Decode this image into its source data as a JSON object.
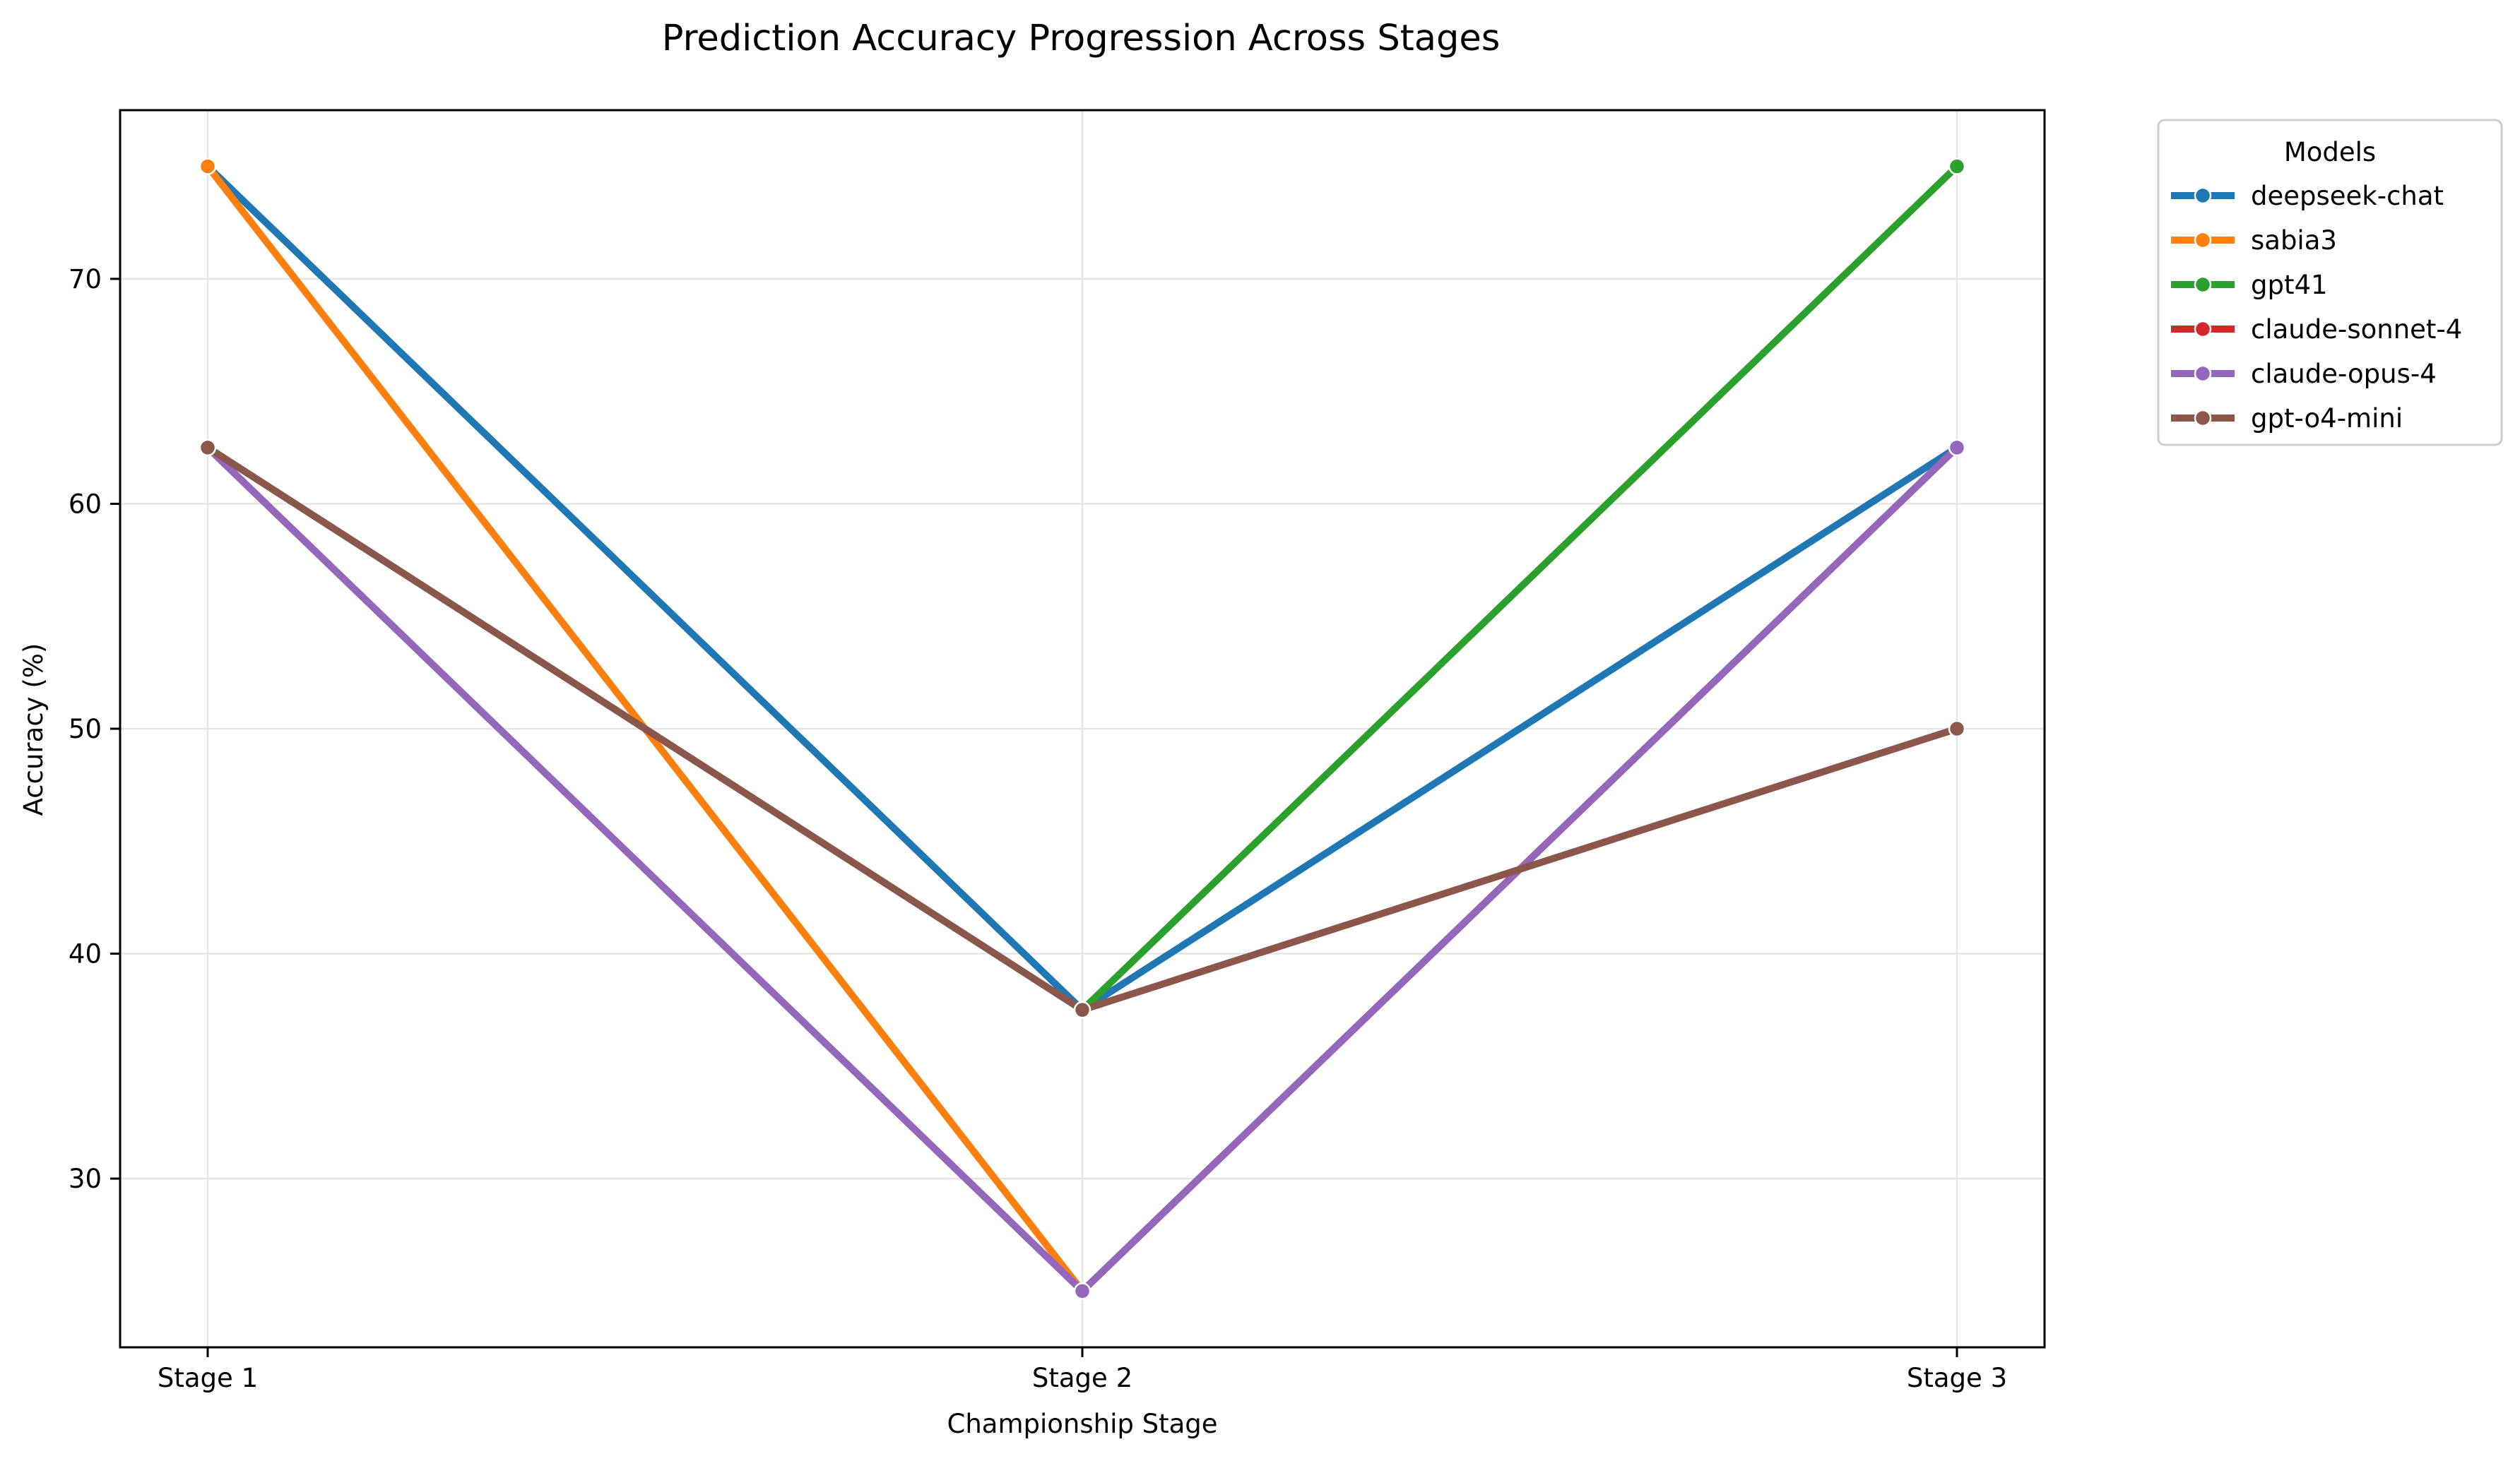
{
  "chart_data": {
    "type": "line",
    "title": "Prediction Accuracy Progression Across Stages",
    "xlabel": "Championship Stage",
    "ylabel": "Accuracy (%)",
    "categories": [
      "Stage 1",
      "Stage 2",
      "Stage 3"
    ],
    "ylim": [
      22.5,
      77.5
    ],
    "yticks": [
      30,
      40,
      50,
      60,
      70
    ],
    "grid": true,
    "legend": {
      "title": "Models",
      "placement": "outside-top-right"
    },
    "series": [
      {
        "name": "deepseek-chat",
        "color": "#1f77b4",
        "values": [
          75,
          37.5,
          62.5
        ]
      },
      {
        "name": "sabia3",
        "color": "#ff7f0e",
        "values": [
          75,
          25,
          62.5
        ]
      },
      {
        "name": "gpt41",
        "color": "#2ca02c",
        "values": [
          62.5,
          37.5,
          75
        ]
      },
      {
        "name": "claude-sonnet-4",
        "color": "#d62728",
        "values": [
          62.5,
          25,
          62.5
        ]
      },
      {
        "name": "claude-opus-4",
        "color": "#9467bd",
        "values": [
          62.5,
          25,
          62.5
        ]
      },
      {
        "name": "gpt-o4-mini",
        "color": "#8c564b",
        "values": [
          62.5,
          37.5,
          50
        ]
      }
    ]
  }
}
